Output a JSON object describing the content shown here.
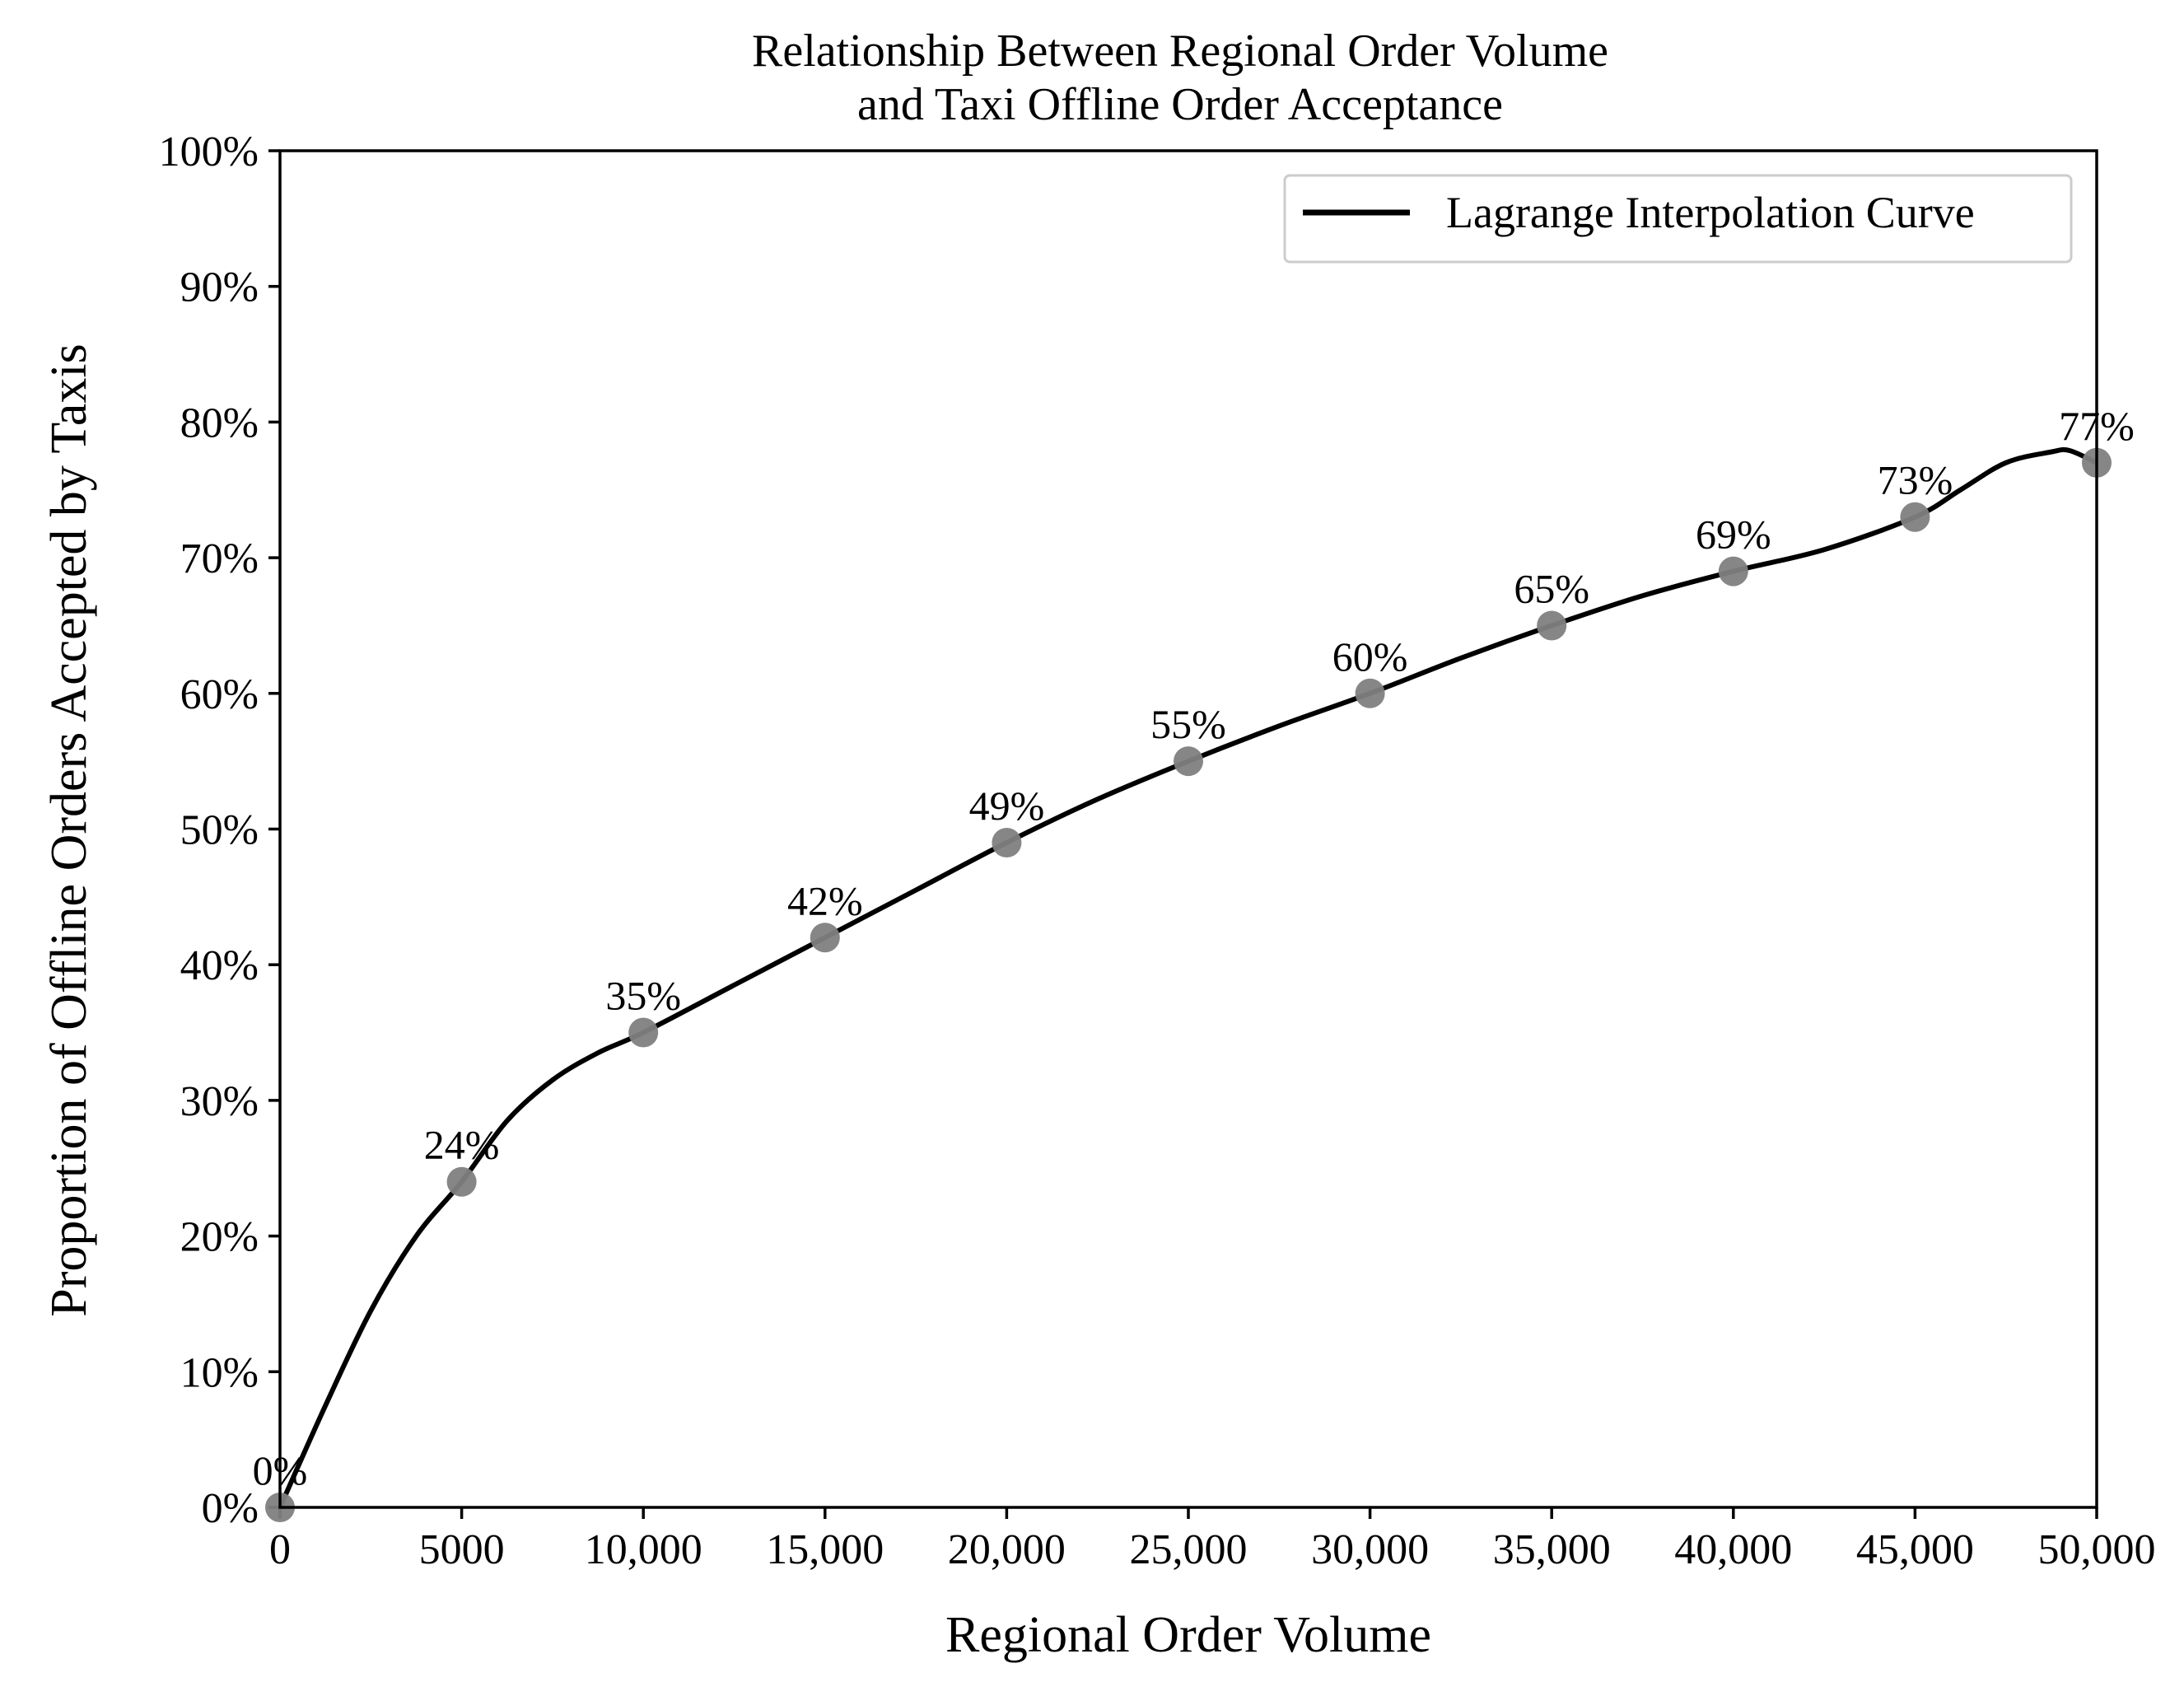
{
  "chart_data": {
    "type": "line",
    "title": [
      "Relationship Between Regional Order Volume",
      "and Taxi Offline Order Acceptance"
    ],
    "xlabel": "Regional Order Volume",
    "ylabel": "Proportion of Offline Orders Accepted by Taxis",
    "xlim": [
      0,
      50000
    ],
    "ylim": [
      0,
      100
    ],
    "x_ticks": [
      {
        "value": 0,
        "label": "0"
      },
      {
        "value": 5000,
        "label": "5000"
      },
      {
        "value": 10000,
        "label": "10,000"
      },
      {
        "value": 15000,
        "label": "15,000"
      },
      {
        "value": 20000,
        "label": "20,000"
      },
      {
        "value": 25000,
        "label": "25,000"
      },
      {
        "value": 30000,
        "label": "30,000"
      },
      {
        "value": 35000,
        "label": "35,000"
      },
      {
        "value": 40000,
        "label": "40,000"
      },
      {
        "value": 45000,
        "label": "45,000"
      },
      {
        "value": 50000,
        "label": "50,000"
      }
    ],
    "y_ticks": [
      {
        "value": 0,
        "label": "0%"
      },
      {
        "value": 10,
        "label": "10%"
      },
      {
        "value": 20,
        "label": "20%"
      },
      {
        "value": 30,
        "label": "30%"
      },
      {
        "value": 40,
        "label": "40%"
      },
      {
        "value": 50,
        "label": "50%"
      },
      {
        "value": 60,
        "label": "60%"
      },
      {
        "value": 70,
        "label": "70%"
      },
      {
        "value": 80,
        "label": "80%"
      },
      {
        "value": 90,
        "label": "90%"
      },
      {
        "value": 100,
        "label": "100%"
      }
    ],
    "grid": false,
    "legend": {
      "position": "top-right",
      "entries": [
        "Lagrange Interpolation Curve"
      ]
    },
    "series": [
      {
        "name": "Lagrange Interpolation Curve",
        "kind": "line",
        "color": "#000000",
        "x": [
          0,
          1250,
          2500,
          3750,
          5000,
          6250,
          7500,
          8750,
          10000,
          12500,
          15000,
          17500,
          20000,
          22500,
          25000,
          27500,
          30000,
          32500,
          35000,
          37500,
          40000,
          42500,
          45000,
          46250,
          47500,
          48750,
          49250,
          50000
        ],
        "y": [
          0,
          7.5,
          14.5,
          20,
          24,
          28.5,
          31.5,
          33.5,
          35,
          38.5,
          42,
          45.5,
          49,
          52.2,
          55,
          57.6,
          60,
          62.6,
          65,
          67.2,
          69,
          70.6,
          73,
          75,
          77,
          77.8,
          77.9,
          77
        ]
      },
      {
        "kind": "points",
        "color": "#808080",
        "x": [
          0,
          5000,
          10000,
          15000,
          20000,
          25000,
          30000,
          35000,
          40000,
          45000,
          50000
        ],
        "y": [
          0,
          24,
          35,
          42,
          49,
          55,
          60,
          65,
          69,
          73,
          77
        ],
        "labels": [
          "0%",
          "24%",
          "35%",
          "42%",
          "49%",
          "55%",
          "60%",
          "65%",
          "69%",
          "73%",
          "77%"
        ]
      }
    ]
  }
}
